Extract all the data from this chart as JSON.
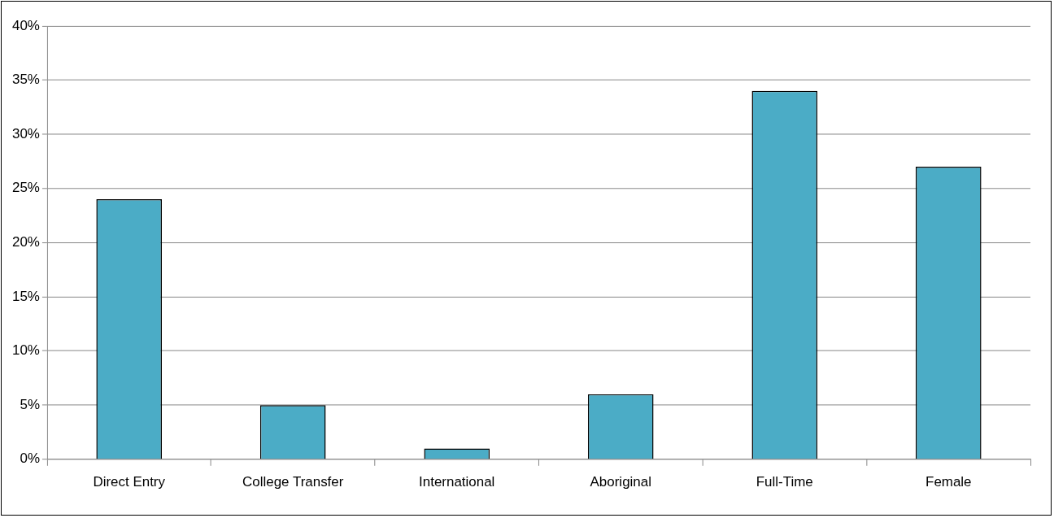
{
  "chart_data": {
    "type": "bar",
    "categories": [
      "Direct Entry",
      "College Transfer",
      "International",
      "Aboriginal",
      "Full-Time",
      "Female"
    ],
    "values": [
      24,
      5,
      1,
      6,
      34,
      27
    ],
    "color": "#4bacc6",
    "ylim": [
      0,
      40
    ],
    "yticks": [
      {
        "value": 0,
        "label": "0%"
      },
      {
        "value": 5,
        "label": "5%"
      },
      {
        "value": 10,
        "label": "10%"
      },
      {
        "value": 15,
        "label": "15%"
      },
      {
        "value": 20,
        "label": "20%"
      },
      {
        "value": 25,
        "label": "25%"
      },
      {
        "value": 30,
        "label": "30%"
      },
      {
        "value": 35,
        "label": "35%"
      },
      {
        "value": 40,
        "label": "40%"
      }
    ],
    "grid": "y",
    "legend": false
  }
}
